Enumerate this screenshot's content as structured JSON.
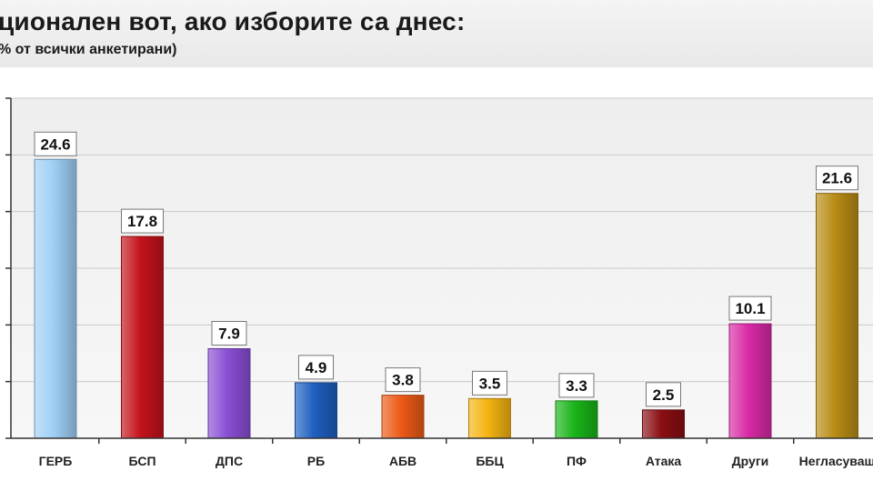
{
  "header": {
    "title": "ционален вот, ако изборите са днес:",
    "subtitle": "% от всички анкетирани)"
  },
  "chart_data": {
    "type": "bar",
    "title": "ционален вот, ако изборите са днес:",
    "subtitle": "% от всички анкетирани)",
    "categories": [
      "ГЕРБ",
      "БСП",
      "ДПС",
      "РБ",
      "АБВ",
      "ББЦ",
      "ПФ",
      "Атака",
      "Други",
      "Негласуващ"
    ],
    "values": [
      24.6,
      17.8,
      7.9,
      4.9,
      3.8,
      3.5,
      3.3,
      2.5,
      10.1,
      21.6
    ],
    "value_labels": [
      "24.6",
      "17.8",
      "7.9",
      "4.9",
      "3.8",
      "3.5",
      "3.3",
      "2.5",
      "10.1",
      "21.6"
    ],
    "colors": [
      "#9fd0f5",
      "#c4121b",
      "#8a4fd4",
      "#1e5fc0",
      "#ec5a16",
      "#f4b412",
      "#19b419",
      "#8a0e12",
      "#d82aa6",
      "#b88c14"
    ],
    "ylim": [
      0,
      30
    ],
    "grid": true,
    "legend": "none"
  }
}
